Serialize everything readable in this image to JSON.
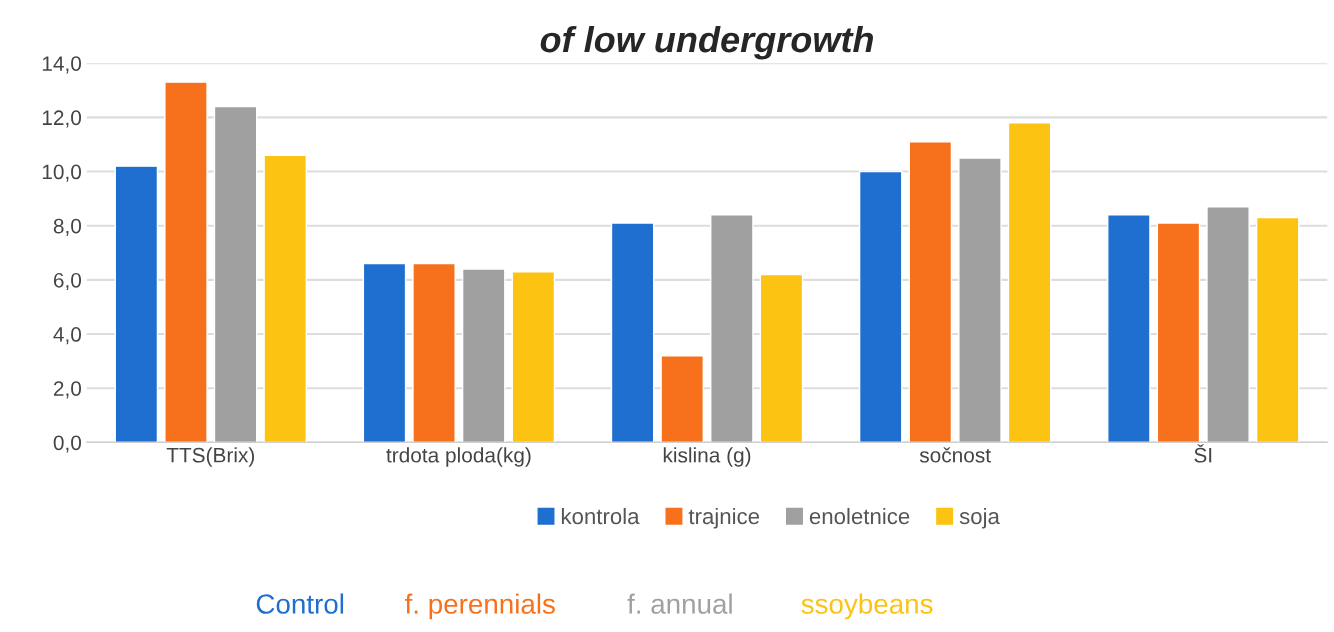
{
  "chart_data": {
    "type": "bar",
    "title": "of low undergrowth",
    "categories": [
      "TTS(Brix)",
      "trdota ploda(kg)",
      "kislina (g)",
      "sočnost",
      "ŠI"
    ],
    "series": [
      {
        "name": "kontrola",
        "color": "#1f6fd0",
        "values": [
          10.2,
          6.6,
          8.1,
          10.0,
          8.4
        ]
      },
      {
        "name": "trajnice",
        "color": "#f7711c",
        "values": [
          13.3,
          6.6,
          3.2,
          11.1,
          8.1
        ]
      },
      {
        "name": "enoletnice",
        "color": "#a0a0a0",
        "values": [
          12.4,
          6.4,
          8.4,
          10.5,
          8.7
        ]
      },
      {
        "name": "soja",
        "color": "#fcc312",
        "values": [
          10.6,
          6.3,
          6.2,
          11.8,
          8.3
        ]
      }
    ],
    "ylim": [
      0,
      14
    ],
    "yticks": [
      {
        "value": 0,
        "label": "0,0"
      },
      {
        "value": 2,
        "label": "2,0"
      },
      {
        "value": 4,
        "label": "4,0"
      },
      {
        "value": 6,
        "label": "6,0"
      },
      {
        "value": 8,
        "label": "8,0"
      },
      {
        "value": 10,
        "label": "10,0"
      },
      {
        "value": 12,
        "label": "12,0"
      },
      {
        "value": 14,
        "label": "14,0"
      }
    ],
    "grid": "y",
    "legend": "bottom",
    "annotations": [
      "Control",
      "f. perennials",
      "f. annual",
      "ssoybeans"
    ]
  }
}
